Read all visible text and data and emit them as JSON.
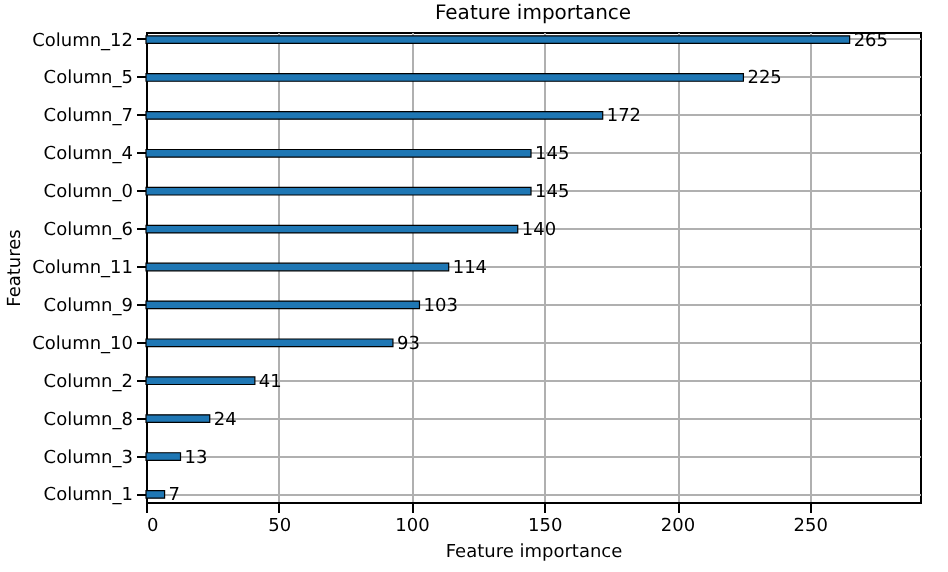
{
  "chart_data": {
    "type": "bar",
    "orientation": "horizontal",
    "title": "Feature importance",
    "xlabel": "Feature importance",
    "ylabel": "Features",
    "categories": [
      "Column_12",
      "Column_5",
      "Column_7",
      "Column_4",
      "Column_0",
      "Column_6",
      "Column_11",
      "Column_9",
      "Column_10",
      "Column_2",
      "Column_8",
      "Column_3",
      "Column_1"
    ],
    "values": [
      265,
      225,
      172,
      145,
      145,
      140,
      114,
      103,
      93,
      41,
      24,
      13,
      7
    ],
    "color": "#1f77b4",
    "xlim": [
      0,
      291.5
    ],
    "xticks": [
      0,
      50,
      100,
      150,
      200,
      250
    ],
    "grid": true,
    "data_labels": true
  }
}
